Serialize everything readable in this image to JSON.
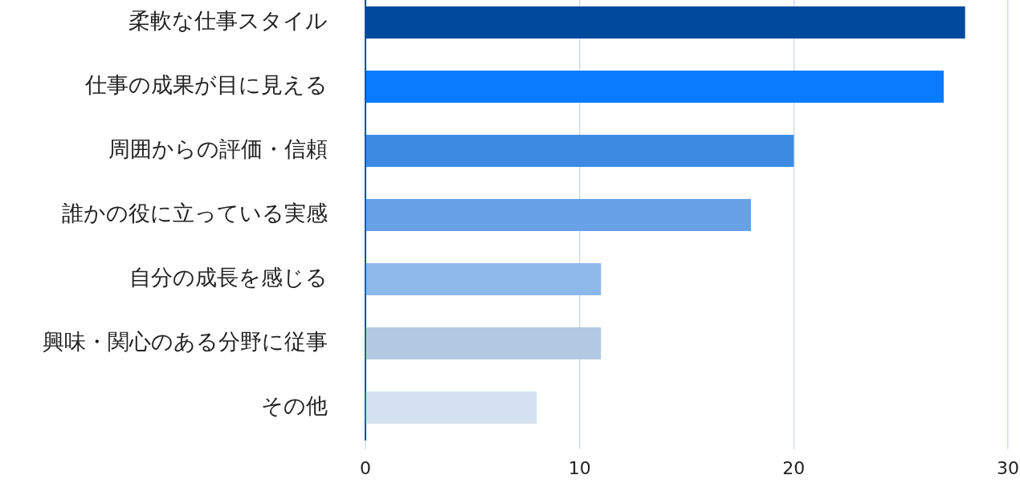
{
  "chart_data": {
    "type": "bar",
    "orientation": "horizontal",
    "categories": [
      "柔軟な仕事スタイル",
      "仕事の成果が目に見える",
      "周囲からの評価・信頼",
      "誰かの役に立っている実感",
      "自分の成長を感じる",
      "興味・関心のある分野に従事",
      "その他"
    ],
    "values": [
      28,
      27,
      20,
      18,
      11,
      11,
      8
    ],
    "colors": [
      "#004a9d",
      "#087bff",
      "#3d8ae3",
      "#67a2e8",
      "#8db8ea",
      "#b3c9e2",
      "#d4e1f1"
    ],
    "xlim": [
      0,
      30
    ],
    "xticks": [
      0,
      10,
      20,
      30
    ],
    "grid": "x",
    "legend": false
  }
}
